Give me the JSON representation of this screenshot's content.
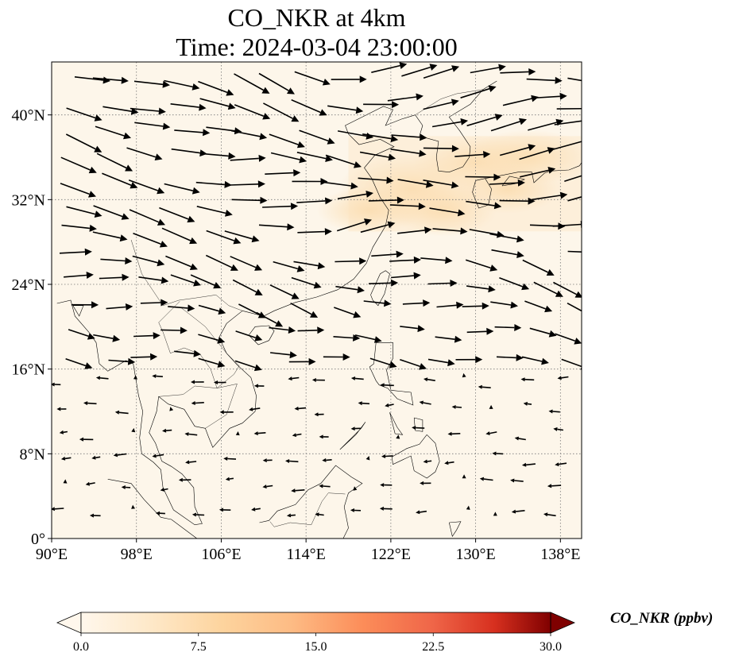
{
  "chart_data": {
    "type": "map",
    "title_line1": "CO_NKR at 4km",
    "title_line2": "Time: 2024-03-04 23:00:00",
    "x_ticks": [
      "90°E",
      "98°E",
      "106°E",
      "114°E",
      "122°E",
      "130°E",
      "138°E"
    ],
    "x_tick_values": [
      90,
      98,
      106,
      114,
      122,
      130,
      138
    ],
    "y_ticks": [
      "40°N",
      "32°N",
      "24°N",
      "16°N",
      "8°N",
      "0°"
    ],
    "y_tick_values": [
      40,
      32,
      24,
      16,
      8,
      0
    ],
    "lon_range": [
      90,
      140
    ],
    "lat_range": [
      0,
      45
    ],
    "grid": true,
    "grid_style": "dotted",
    "colorbar": {
      "label": "CO_NKR (ppbv)",
      "ticks": [
        "0.0",
        "7.5",
        "15.0",
        "22.5",
        "30.0"
      ],
      "tick_values": [
        0,
        7.5,
        15,
        22.5,
        30
      ],
      "range": [
        0,
        30
      ],
      "colormap": "OrRd",
      "extend": "both",
      "orientation": "horizontal"
    },
    "field_background": "#fdf6ea",
    "plume_color": "#fbe2bd",
    "plume_region": {
      "lon": [
        118,
        140
      ],
      "lat": [
        29,
        38
      ]
    },
    "wind_vectors": "black arrows, westerly flow north of 20°N, weak/variable south of 18°N"
  }
}
